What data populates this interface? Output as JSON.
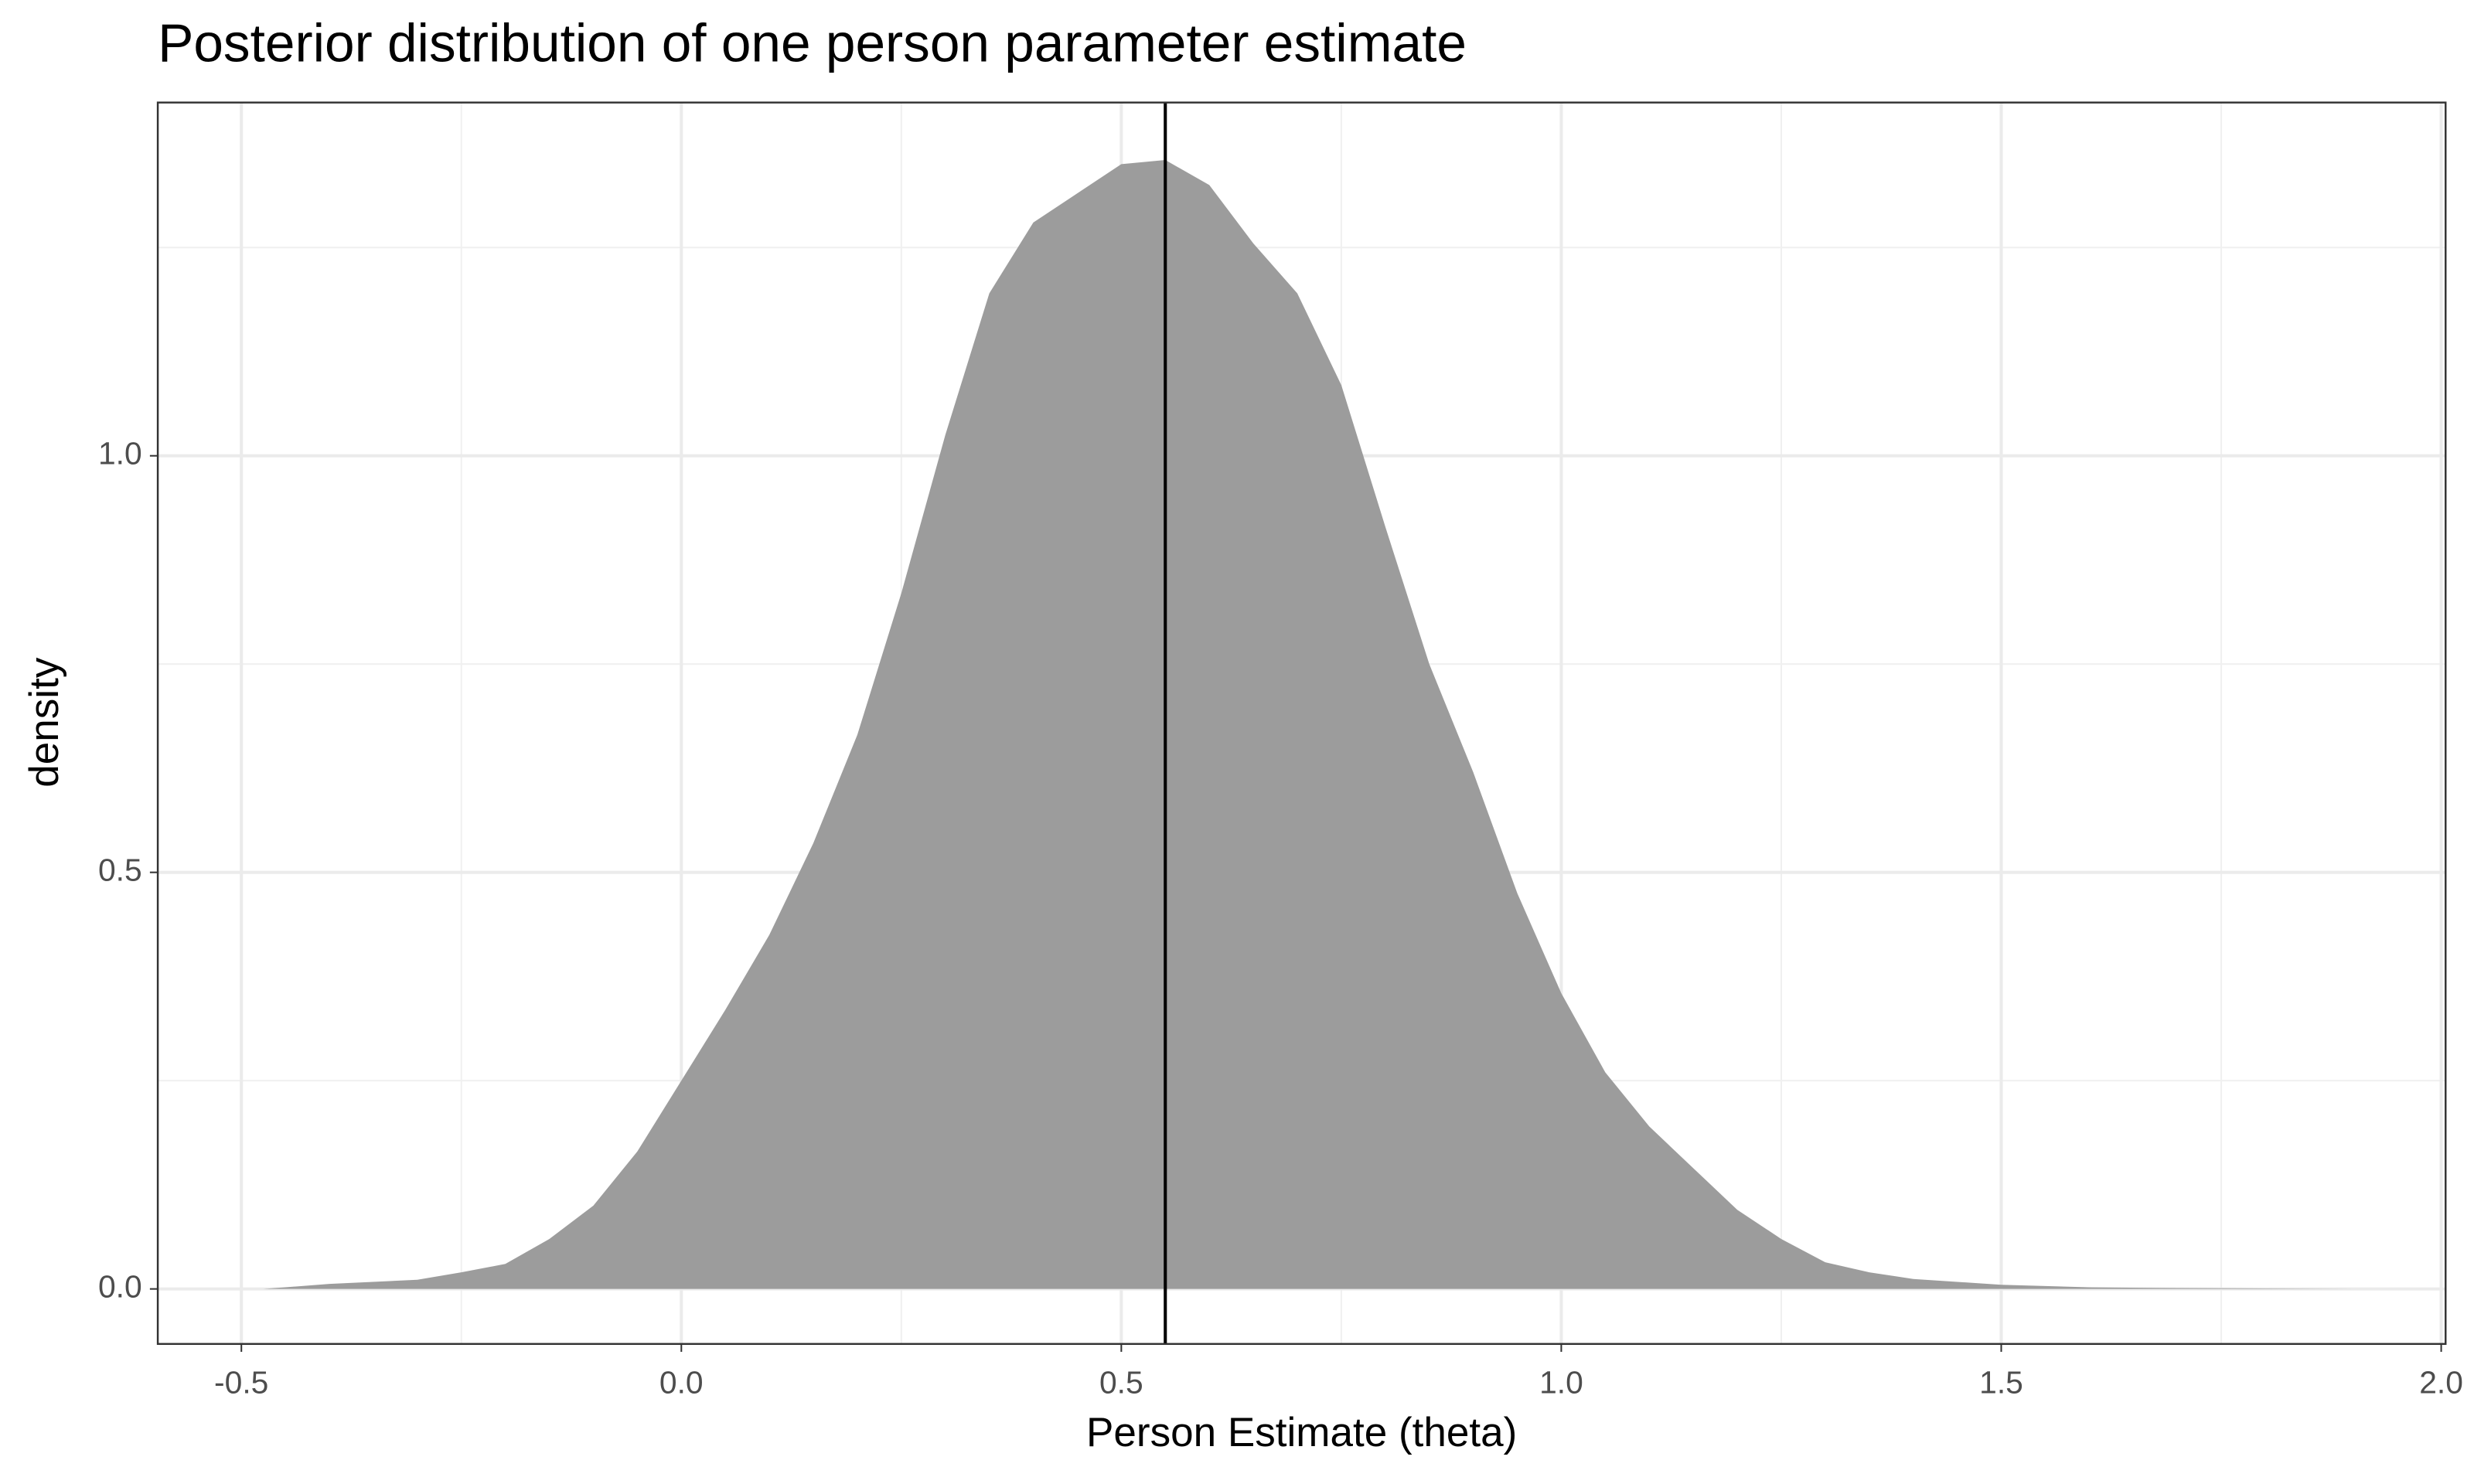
{
  "chart_data": {
    "type": "area",
    "title": "Posterior distribution of one person parameter estimate",
    "x_label": "Person Estimate (theta)",
    "y_label": "density",
    "x": [
      -0.475,
      -0.4,
      -0.3,
      -0.25,
      -0.2,
      -0.15,
      -0.1,
      -0.05,
      0.0,
      0.05,
      0.1,
      0.15,
      0.2,
      0.25,
      0.3,
      0.35,
      0.4,
      0.45,
      0.5,
      0.55,
      0.6,
      0.65,
      0.7,
      0.75,
      0.8,
      0.85,
      0.9,
      0.95,
      1.0,
      1.05,
      1.1,
      1.15,
      1.2,
      1.25,
      1.3,
      1.35,
      1.4,
      1.5,
      1.6,
      1.7,
      1.9
    ],
    "values": [
      0,
      0.006,
      0.011,
      0.02,
      0.03,
      0.06,
      0.1,
      0.165,
      0.25,
      0.335,
      0.425,
      0.535,
      0.665,
      0.835,
      1.025,
      1.195,
      1.28,
      1.315,
      1.35,
      1.355,
      1.325,
      1.255,
      1.195,
      1.085,
      0.915,
      0.75,
      0.62,
      0.475,
      0.355,
      0.26,
      0.195,
      0.145,
      0.095,
      0.06,
      0.032,
      0.02,
      0.012,
      0.005,
      0.002,
      0.001,
      0
    ],
    "color": "#999999",
    "reference_line_x": 0.55,
    "reference_line_color": "#000000",
    "xlim": [
      -0.595,
      2.005
    ],
    "ylim": [
      -0.066,
      1.424
    ],
    "xticks": [
      -0.5,
      {
        "value": 0,
        "label": "0.0"
      },
      0.5,
      {
        "value": 1,
        "label": "1.0"
      },
      1.5,
      {
        "value": 2,
        "label": "2.0"
      }
    ],
    "yticks": [
      {
        "value": 0,
        "label": "0.0"
      },
      0.5,
      {
        "value": 1,
        "label": "1.0"
      }
    ],
    "grid": true
  }
}
